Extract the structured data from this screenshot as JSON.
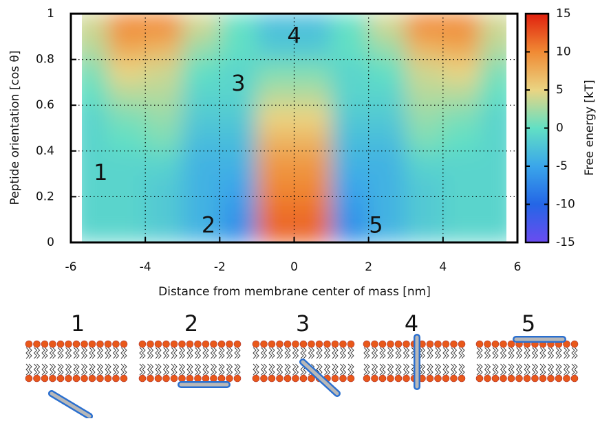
{
  "chart_data": {
    "type": "heatmap",
    "x_label": "Distance from membrane center of mass [nm]",
    "y_label": "Peptide orientation [cos θ]",
    "colorbar_label": "Free energy [kT]",
    "xlim": [
      -6,
      6
    ],
    "xticks": [
      -6,
      -4,
      -2,
      0,
      2,
      4,
      6
    ],
    "ylim": [
      0,
      1
    ],
    "yticks": [
      0,
      0.2,
      0.4,
      0.6,
      0.8,
      1
    ],
    "clim": [
      -15,
      15
    ],
    "cticks": [
      -15,
      -10,
      -5,
      0,
      5,
      10,
      15
    ],
    "colormap": [
      "#6a4cf0",
      "#2466e6",
      "#3aa6ea",
      "#62e0c4",
      "#ead482",
      "#f08a34",
      "#e0200e"
    ],
    "grid": true,
    "x": [
      -5.5,
      -4.5,
      -3.5,
      -2.5,
      -1.5,
      -0.5,
      0.5,
      1.5,
      2.5,
      3.5,
      4.5,
      5.5
    ],
    "y": [
      0.05,
      0.15,
      0.25,
      0.35,
      0.45,
      0.55,
      0.65,
      0.75,
      0.85,
      0.95
    ],
    "z": [
      [
        -1,
        -1,
        -2,
        -4,
        -7,
        12,
        12,
        -7,
        -4,
        -2,
        -1,
        -1
      ],
      [
        -1,
        -1,
        -2,
        -4,
        -6,
        11,
        11,
        -6,
        -4,
        -2,
        -1,
        -1
      ],
      [
        -1,
        -1,
        -2,
        -4,
        -5,
        10,
        10,
        -5,
        -4,
        -2,
        -1,
        -1
      ],
      [
        -1,
        -1,
        -1,
        -4,
        -4,
        9,
        9,
        -4,
        -4,
        -1,
        -1,
        -1
      ],
      [
        -1,
        0,
        1,
        -3,
        -3,
        7,
        7,
        -3,
        -3,
        1,
        0,
        -1
      ],
      [
        -1,
        1,
        2,
        -2,
        -2,
        5,
        5,
        -2,
        -2,
        2,
        1,
        -1
      ],
      [
        0,
        3,
        3,
        -1,
        -1,
        3,
        3,
        -1,
        -1,
        3,
        3,
        0
      ],
      [
        1,
        5,
        4,
        0,
        -1,
        1,
        1,
        -1,
        0,
        4,
        5,
        1
      ],
      [
        3,
        8,
        7,
        2,
        0,
        -2,
        -2,
        0,
        2,
        7,
        8,
        3
      ],
      [
        4,
        10,
        10,
        4,
        0,
        -3,
        -3,
        0,
        4,
        10,
        10,
        4
      ]
    ],
    "region_labels": [
      "1",
      "2",
      "3",
      "4",
      "5"
    ]
  },
  "schematic": {
    "labels": [
      "1",
      "2",
      "3",
      "4",
      "5"
    ]
  }
}
